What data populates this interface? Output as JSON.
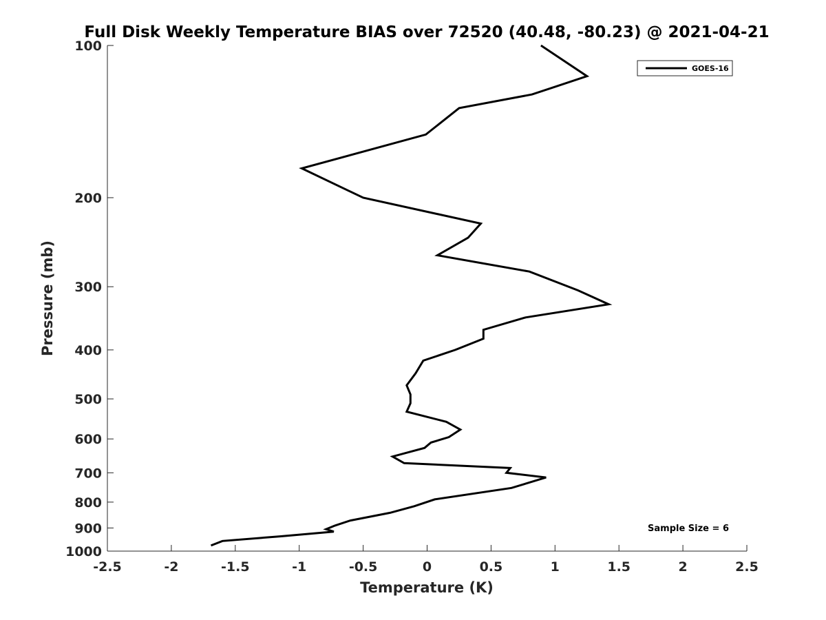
{
  "chart_data": {
    "type": "line",
    "title": "Full Disk Weekly Temperature BIAS over 72520 (40.48, -80.23) @ 2021-04-21",
    "xlabel": "Temperature (K)",
    "ylabel": "Pressure (mb)",
    "xlim": [
      -2.5,
      2.5
    ],
    "ylim": [
      100,
      1000
    ],
    "y_scale": "log",
    "y_reversed": true,
    "x_ticks": [
      -2.5,
      -2,
      -1.5,
      -1,
      -0.5,
      0,
      0.5,
      1,
      1.5,
      2,
      2.5
    ],
    "x_tick_labels": [
      "-2.5",
      "-2",
      "-1.5",
      "-1",
      "-0.5",
      "0",
      "0.5",
      "1",
      "1.5",
      "2",
      "2.5"
    ],
    "y_ticks": [
      100,
      200,
      300,
      400,
      500,
      600,
      700,
      800,
      900,
      1000
    ],
    "y_tick_labels": [
      "100",
      "200",
      "300",
      "400",
      "500",
      "600",
      "700",
      "800",
      "900",
      "1000"
    ],
    "grid": false,
    "legend_position": "top-right",
    "series": [
      {
        "name": "GOES-16",
        "color": "#000000",
        "x": [
          0.89,
          1.25,
          0.82,
          0.25,
          -0.01,
          -0.98,
          -0.5,
          0.42,
          0.32,
          0.08,
          0.8,
          1.18,
          1.42,
          0.77,
          0.44,
          0.44,
          0.22,
          -0.03,
          -0.09,
          -0.16,
          -0.13,
          -0.13,
          -0.16,
          0.15,
          0.26,
          0.17,
          0.03,
          -0.02,
          -0.27,
          -0.18,
          0.65,
          0.62,
          0.93,
          0.66,
          0.06,
          -0.1,
          -0.29,
          -0.6,
          -0.72,
          -0.79,
          -0.73,
          -1.15,
          -1.6,
          -1.69
        ],
        "y": [
          100,
          115,
          125,
          133,
          150,
          175,
          200,
          225,
          240,
          260,
          280,
          305,
          325,
          345,
          365,
          380,
          400,
          420,
          445,
          470,
          490,
          510,
          530,
          555,
          575,
          595,
          610,
          625,
          650,
          670,
          685,
          700,
          715,
          750,
          790,
          815,
          840,
          870,
          890,
          905,
          915,
          935,
          955,
          975
        ]
      }
    ],
    "annotations": [
      "Sample Size = 6"
    ]
  }
}
